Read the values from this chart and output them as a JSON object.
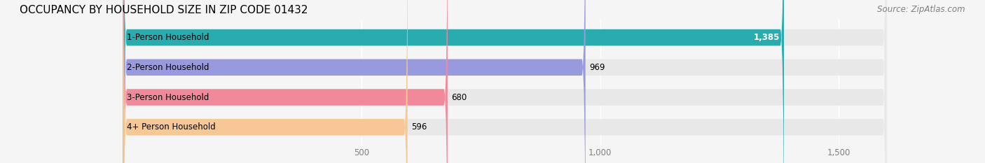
{
  "title": "OCCUPANCY BY HOUSEHOLD SIZE IN ZIP CODE 01432",
  "source": "Source: ZipAtlas.com",
  "categories": [
    "1-Person Household",
    "2-Person Household",
    "3-Person Household",
    "4+ Person Household"
  ],
  "values": [
    1385,
    969,
    680,
    596
  ],
  "bar_colors": [
    "#2aabb0",
    "#9999dd",
    "#f0899a",
    "#f5c895"
  ],
  "bar_label_colors": [
    "white",
    "black",
    "black",
    "black"
  ],
  "xlim": [
    0,
    1600
  ],
  "xticks": [
    500,
    1000,
    1500
  ],
  "xtick_labels": [
    "500",
    "1,000",
    "1,500"
  ],
  "background_color": "#f5f5f5",
  "bar_bg_color": "#e8e8e8",
  "title_fontsize": 11,
  "source_fontsize": 8.5,
  "label_fontsize": 8.5,
  "tick_fontsize": 8.5
}
